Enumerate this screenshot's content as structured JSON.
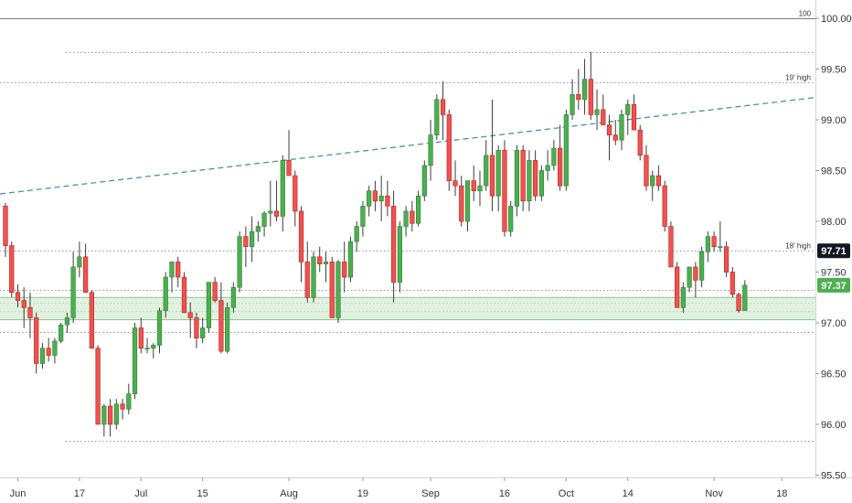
{
  "chart_data": {
    "type": "candlestick",
    "y_axis": {
      "range": [
        95.5,
        100.1
      ],
      "tick_labels": [
        "100.00",
        "99.50",
        "99.00",
        "98.50",
        "98.00",
        "97.50",
        "97.00",
        "96.50",
        "96.00",
        "95.50"
      ],
      "tick_values": [
        100.0,
        99.5,
        99.0,
        98.5,
        98.0,
        97.5,
        97.0,
        96.5,
        96.0,
        95.5
      ]
    },
    "x_axis": {
      "tick_labels": [
        "Jun",
        "17",
        "Jul",
        "15",
        "Aug",
        "19",
        "Sep",
        "16",
        "Oct",
        "14",
        "Nov",
        "18"
      ],
      "tick_bar_index": [
        2,
        12,
        22,
        32,
        46,
        58,
        69,
        81,
        91,
        101,
        115,
        126
      ]
    },
    "level_lines": [
      {
        "value": 100.0,
        "label": "100",
        "style": "solid"
      },
      {
        "value": 99.67,
        "label": "",
        "style": "dotted"
      },
      {
        "value": 99.37,
        "label": "19' high",
        "style": "dotted"
      },
      {
        "value": 97.71,
        "label": "18' high",
        "style": "dotted"
      },
      {
        "value": 97.32,
        "label": "",
        "style": "dotted"
      },
      {
        "value": 96.91,
        "label": "",
        "style": "dotted"
      },
      {
        "value": 95.84,
        "label": "",
        "style": "dotted"
      }
    ],
    "support_zone": {
      "from": 97.03,
      "to": 97.25
    },
    "trend_line": {
      "from": 98.27,
      "to": 99.22
    },
    "price_badges": [
      {
        "value": 97.71,
        "label": "97.71",
        "color": "#131722"
      },
      {
        "value": 97.37,
        "label": "97.37",
        "color": "#4caf50"
      }
    ],
    "candles": [
      [
        98.15,
        98.18,
        97.65,
        97.76
      ],
      [
        97.76,
        97.8,
        97.25,
        97.3
      ],
      [
        97.3,
        97.38,
        97.15,
        97.22
      ],
      [
        97.22,
        97.35,
        96.95,
        97.15
      ],
      [
        97.15,
        97.3,
        96.85,
        97.05
      ],
      [
        97.05,
        97.1,
        96.5,
        96.6
      ],
      [
        96.6,
        96.8,
        96.55,
        96.75
      ],
      [
        96.75,
        96.85,
        96.62,
        96.68
      ],
      [
        96.68,
        96.85,
        96.6,
        96.82
      ],
      [
        96.82,
        97.0,
        96.8,
        96.98
      ],
      [
        96.98,
        97.1,
        96.9,
        97.05
      ],
      [
        97.05,
        97.7,
        97.0,
        97.55
      ],
      [
        97.55,
        97.8,
        97.45,
        97.65
      ],
      [
        97.65,
        97.78,
        97.3,
        97.3
      ],
      [
        97.3,
        97.32,
        96.75,
        96.75
      ],
      [
        96.75,
        96.78,
        96.0,
        96.0
      ],
      [
        96.0,
        96.2,
        95.88,
        96.18
      ],
      [
        96.18,
        96.25,
        95.88,
        96.0
      ],
      [
        96.0,
        96.25,
        95.95,
        96.2
      ],
      [
        96.2,
        96.25,
        96.05,
        96.15
      ],
      [
        96.15,
        96.4,
        96.1,
        96.3
      ],
      [
        96.3,
        97.0,
        96.25,
        96.95
      ],
      [
        96.95,
        97.05,
        96.7,
        96.75
      ],
      [
        96.75,
        96.85,
        96.7,
        96.75
      ],
      [
        96.75,
        96.8,
        96.65,
        96.78
      ],
      [
        96.78,
        97.15,
        96.7,
        97.12
      ],
      [
        97.12,
        97.5,
        97.05,
        97.45
      ],
      [
        97.45,
        97.6,
        97.3,
        97.6
      ],
      [
        97.6,
        97.65,
        97.35,
        97.45
      ],
      [
        97.45,
        97.5,
        97.1,
        97.1
      ],
      [
        97.1,
        97.2,
        96.85,
        97.05
      ],
      [
        97.05,
        97.1,
        96.75,
        96.85
      ],
      [
        96.85,
        97.05,
        96.8,
        96.95
      ],
      [
        96.95,
        97.4,
        96.9,
        97.4
      ],
      [
        97.4,
        97.45,
        97.2,
        97.22
      ],
      [
        97.22,
        97.4,
        96.7,
        96.72
      ],
      [
        96.72,
        97.2,
        96.7,
        97.15
      ],
      [
        97.15,
        97.4,
        97.1,
        97.35
      ],
      [
        97.35,
        97.9,
        97.3,
        97.85
      ],
      [
        97.85,
        97.95,
        97.55,
        97.75
      ],
      [
        97.75,
        98.05,
        97.6,
        97.9
      ],
      [
        97.9,
        98.0,
        97.8,
        97.95
      ],
      [
        97.95,
        98.1,
        97.85,
        98.08
      ],
      [
        98.08,
        98.4,
        97.95,
        98.1
      ],
      [
        98.1,
        98.4,
        98.0,
        98.05
      ],
      [
        98.05,
        98.65,
        97.9,
        98.6
      ],
      [
        98.6,
        98.9,
        98.45,
        98.45
      ],
      [
        98.45,
        98.5,
        97.95,
        98.1
      ],
      [
        98.1,
        98.15,
        97.4,
        97.6
      ],
      [
        97.6,
        97.8,
        97.2,
        97.25
      ],
      [
        97.25,
        97.7,
        97.2,
        97.65
      ],
      [
        97.65,
        97.75,
        97.5,
        97.58
      ],
      [
        97.58,
        97.7,
        97.4,
        97.6
      ],
      [
        97.6,
        97.65,
        97.05,
        97.05
      ],
      [
        97.05,
        97.62,
        97.0,
        97.6
      ],
      [
        97.6,
        97.8,
        97.3,
        97.45
      ],
      [
        97.45,
        97.85,
        97.4,
        97.8
      ],
      [
        97.8,
        98.0,
        97.7,
        97.95
      ],
      [
        97.95,
        98.2,
        97.85,
        98.15
      ],
      [
        98.15,
        98.35,
        98.05,
        98.3
      ],
      [
        98.3,
        98.4,
        98.1,
        98.2
      ],
      [
        98.2,
        98.45,
        98.0,
        98.25
      ],
      [
        98.25,
        98.4,
        98.05,
        98.15
      ],
      [
        98.15,
        98.3,
        97.2,
        97.4
      ],
      [
        97.4,
        98.0,
        97.3,
        97.95
      ],
      [
        97.95,
        98.15,
        97.85,
        98.1
      ],
      [
        98.1,
        98.2,
        97.9,
        97.98
      ],
      [
        97.98,
        98.3,
        97.95,
        98.25
      ],
      [
        98.25,
        98.6,
        98.2,
        98.55
      ],
      [
        98.55,
        99.0,
        98.4,
        98.85
      ],
      [
        98.85,
        99.25,
        98.8,
        99.2
      ],
      [
        99.2,
        99.38,
        98.8,
        99.05
      ],
      [
        99.05,
        99.1,
        98.3,
        98.4
      ],
      [
        98.4,
        98.6,
        98.25,
        98.35
      ],
      [
        98.35,
        98.45,
        97.95,
        98.0
      ],
      [
        98.0,
        98.4,
        97.9,
        98.4
      ],
      [
        98.4,
        98.55,
        98.2,
        98.3
      ],
      [
        98.3,
        98.5,
        98.15,
        98.35
      ],
      [
        98.35,
        98.8,
        98.3,
        98.65
      ],
      [
        98.65,
        99.2,
        98.1,
        98.25
      ],
      [
        98.25,
        98.75,
        98.1,
        98.7
      ],
      [
        98.7,
        98.8,
        97.85,
        97.9
      ],
      [
        97.9,
        98.2,
        97.85,
        98.15
      ],
      [
        98.15,
        98.75,
        98.05,
        98.7
      ],
      [
        98.7,
        98.75,
        98.1,
        98.2
      ],
      [
        98.2,
        98.7,
        98.1,
        98.6
      ],
      [
        98.6,
        98.7,
        98.2,
        98.25
      ],
      [
        98.25,
        98.55,
        98.2,
        98.5
      ],
      [
        98.5,
        98.7,
        98.4,
        98.55
      ],
      [
        98.55,
        98.8,
        98.5,
        98.72
      ],
      [
        98.72,
        98.95,
        98.3,
        98.35
      ],
      [
        98.35,
        99.1,
        98.3,
        99.05
      ],
      [
        99.05,
        99.4,
        99.0,
        99.25
      ],
      [
        99.25,
        99.5,
        99.1,
        99.2
      ],
      [
        99.2,
        99.6,
        99.05,
        99.4
      ],
      [
        99.4,
        99.67,
        99.0,
        99.05
      ],
      [
        99.05,
        99.3,
        98.9,
        99.1
      ],
      [
        99.1,
        99.25,
        98.95,
        98.95
      ],
      [
        98.95,
        99.05,
        98.6,
        98.85
      ],
      [
        98.85,
        99.0,
        98.75,
        98.8
      ],
      [
        98.8,
        99.1,
        98.7,
        99.05
      ],
      [
        99.05,
        99.2,
        98.85,
        99.15
      ],
      [
        99.15,
        99.25,
        98.9,
        98.9
      ],
      [
        98.9,
        98.95,
        98.6,
        98.65
      ],
      [
        98.65,
        98.75,
        98.3,
        98.35
      ],
      [
        98.35,
        98.5,
        98.2,
        98.45
      ],
      [
        98.45,
        98.55,
        98.3,
        98.35
      ],
      [
        98.35,
        98.4,
        97.9,
        97.95
      ],
      [
        97.95,
        98.0,
        97.55,
        97.55
      ],
      [
        97.55,
        97.6,
        97.15,
        97.15
      ],
      [
        97.15,
        97.4,
        97.1,
        97.35
      ],
      [
        97.35,
        97.55,
        97.3,
        97.55
      ],
      [
        97.55,
        97.6,
        97.25,
        97.42
      ],
      [
        97.42,
        97.75,
        97.35,
        97.7
      ],
      [
        97.7,
        97.9,
        97.6,
        97.85
      ],
      [
        97.85,
        97.9,
        97.7,
        97.75
      ],
      [
        97.75,
        98.0,
        97.7,
        97.75
      ],
      [
        97.75,
        97.8,
        97.45,
        97.5
      ],
      [
        97.5,
        97.55,
        97.25,
        97.28
      ],
      [
        97.28,
        97.3,
        97.1,
        97.12
      ],
      [
        97.12,
        97.42,
        97.15,
        97.37
      ]
    ]
  }
}
